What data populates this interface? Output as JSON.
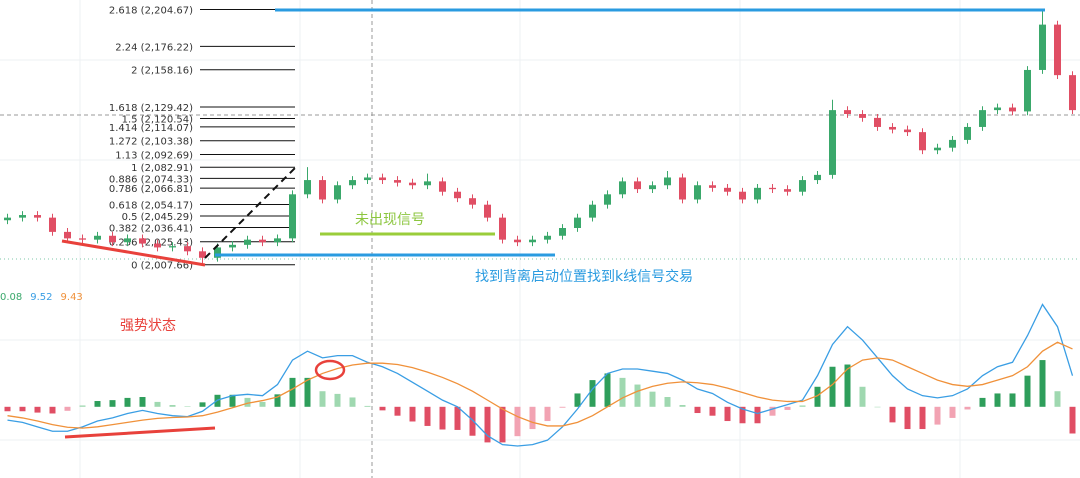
{
  "chart_data": [
    {
      "type": "candlestick",
      "open": [
        2042,
        2044,
        2046,
        2044,
        2033,
        2028,
        2027,
        2030,
        2025,
        2028,
        2024,
        2021,
        2022,
        2018,
        2013,
        2021,
        2023,
        2027,
        2025,
        2028,
        2062,
        2073,
        2058,
        2069,
        2073,
        2075,
        2073,
        2071,
        2069,
        2072,
        2064,
        2059,
        2054,
        2044,
        2027,
        2025,
        2027,
        2030,
        2036,
        2044,
        2054,
        2062,
        2072,
        2066,
        2069,
        2075,
        2058,
        2069,
        2067,
        2064,
        2058,
        2067,
        2066,
        2064,
        2073,
        2077,
        2127,
        2124,
        2121,
        2114,
        2112,
        2110,
        2096,
        2098,
        2104,
        2114,
        2127,
        2129,
        2126,
        2158,
        2193,
        2154
      ],
      "high": [
        2047,
        2049,
        2049,
        2047,
        2036,
        2031,
        2033,
        2033,
        2031,
        2031,
        2027,
        2025,
        2025,
        2021,
        2024,
        2026,
        2030,
        2030,
        2031,
        2065,
        2083,
        2076,
        2072,
        2076,
        2078,
        2078,
        2076,
        2074,
        2078,
        2075,
        2067,
        2062,
        2057,
        2047,
        2030,
        2030,
        2033,
        2039,
        2047,
        2057,
        2065,
        2075,
        2075,
        2072,
        2080,
        2078,
        2072,
        2072,
        2070,
        2067,
        2070,
        2070,
        2069,
        2076,
        2080,
        2135,
        2130,
        2127,
        2124,
        2117,
        2115,
        2113,
        2101,
        2107,
        2117,
        2130,
        2132,
        2132,
        2161,
        2204,
        2196,
        2157
      ],
      "low": [
        2039,
        2041,
        2041,
        2030,
        2025,
        2024,
        2024,
        2022,
        2022,
        2021,
        2018,
        2018,
        2015,
        2008,
        2010,
        2018,
        2020,
        2022,
        2022,
        2025,
        2059,
        2055,
        2055,
        2066,
        2070,
        2070,
        2068,
        2066,
        2066,
        2061,
        2056,
        2051,
        2041,
        2024,
        2022,
        2022,
        2024,
        2027,
        2033,
        2041,
        2051,
        2059,
        2063,
        2063,
        2066,
        2055,
        2055,
        2064,
        2061,
        2055,
        2055,
        2063,
        2061,
        2061,
        2070,
        2074,
        2121,
        2118,
        2111,
        2109,
        2107,
        2093,
        2093,
        2095,
        2101,
        2111,
        2124,
        2123,
        2123,
        2155,
        2151,
        2124
      ],
      "close": [
        2044,
        2046,
        2044,
        2033,
        2028,
        2027,
        2030,
        2025,
        2028,
        2024,
        2021,
        2022,
        2018,
        2013,
        2021,
        2023,
        2027,
        2025,
        2028,
        2062,
        2073,
        2058,
        2069,
        2073,
        2075,
        2073,
        2071,
        2069,
        2072,
        2064,
        2059,
        2054,
        2044,
        2027,
        2025,
        2027,
        2030,
        2036,
        2044,
        2054,
        2062,
        2072,
        2066,
        2069,
        2075,
        2058,
        2069,
        2067,
        2064,
        2058,
        2067,
        2066,
        2064,
        2073,
        2077,
        2127,
        2124,
        2121,
        2114,
        2112,
        2110,
        2096,
        2098,
        2104,
        2114,
        2127,
        2129,
        2126,
        2158,
        2193,
        2154,
        2127
      ],
      "up_color": "#3aa86b",
      "down_color": "#e04e64",
      "ylim": [
        1992,
        2212
      ],
      "yticks": [
        {
          "value": 2204.67,
          "label": "2.618 (2,204.67)"
        },
        {
          "value": 2176.22,
          "label": "2.24 (2,176.22)"
        },
        {
          "value": 2158.16,
          "label": "2 (2,158.16)"
        },
        {
          "value": 2129.42,
          "label": "1.618 (2,129.42)"
        },
        {
          "value": 2120.54,
          "label": "1.5 (2,120.54)"
        },
        {
          "value": 2114.07,
          "label": "1.414 (2,114.07)"
        },
        {
          "value": 2103.38,
          "label": "1.272 (2,103.38)"
        },
        {
          "value": 2092.69,
          "label": "1.13 (2,092.69)"
        },
        {
          "value": 2082.91,
          "label": "1 (2,082.91)"
        },
        {
          "value": 2074.33,
          "label": "0.886 (2,074.33)"
        },
        {
          "value": 2066.81,
          "label": "0.786 (2,066.81)"
        },
        {
          "value": 2054.17,
          "label": "0.618 (2,054.17)"
        },
        {
          "value": 2045.29,
          "label": "0.5 (2,045.29)"
        },
        {
          "value": 2036.41,
          "label": "0.382 (2,036.41)"
        },
        {
          "value": 2025.43,
          "label": "0.236 (2,025.43)"
        },
        {
          "value": 2007.66,
          "label": "0 (2,007.66)"
        }
      ],
      "annotations": [
        "未出现信号",
        "找到背离启动位置找到k线信号交易"
      ]
    },
    {
      "type": "macd",
      "ylim": [
        -16,
        24
      ],
      "series": [
        {
          "color": "#3aa86b",
          "readout": 0.08,
          "values": [
            -1,
            -1,
            -1.3,
            -1.5,
            -0.9,
            0.3,
            1.3,
            1.5,
            2,
            2.2,
            1.1,
            0.4,
            0.1,
            1,
            2.7,
            2.7,
            2,
            1.1,
            2.8,
            6.5,
            6.5,
            3.5,
            2.9,
            2.1,
            0.2,
            -0.8,
            -2,
            -3.3,
            -4.3,
            -5.1,
            -5.2,
            -6.5,
            -8,
            -8,
            -6.6,
            -5,
            -3.2,
            -0.2,
            3,
            6,
            7.5,
            6.5,
            5,
            3.4,
            2.2,
            0.4,
            -1.4,
            -2,
            -3.2,
            -3.7,
            -3.7,
            -2,
            -0.7,
            0.3,
            4.5,
            9,
            9.5,
            4.5,
            0,
            -3.5,
            -5,
            -5,
            -4,
            -2.5,
            -0.6,
            2,
            3,
            3,
            7,
            10.5,
            3.5,
            -6
          ]
        },
        {
          "color": "#3a9ee4",
          "readout": 9.52,
          "values": [
            -3,
            -3.5,
            -4.5,
            -5.5,
            -5.5,
            -4.5,
            -3.2,
            -2.5,
            -1.5,
            -0.8,
            -1.5,
            -2,
            -2.2,
            -1,
            1.5,
            2.5,
            2.8,
            2.5,
            5,
            10.5,
            12.5,
            11,
            11.5,
            11.5,
            10,
            9,
            7.5,
            5.5,
            3.5,
            1.5,
            0,
            -3,
            -6.5,
            -8.5,
            -8.8,
            -8.5,
            -7.5,
            -4.5,
            -0.5,
            4,
            7.5,
            8.5,
            8.5,
            8,
            7.5,
            6,
            4,
            3,
            1,
            -0.5,
            -1.5,
            -0.5,
            0.5,
            1.5,
            7,
            14,
            18,
            15,
            11,
            7,
            4,
            2.5,
            2,
            2.5,
            4,
            7,
            9,
            10,
            16,
            23,
            18,
            7
          ]
        },
        {
          "color": "#f0913a",
          "readout": 9.43,
          "values": [
            -2,
            -2.5,
            -3.2,
            -4,
            -4.6,
            -4.8,
            -4.5,
            -4,
            -3.5,
            -3,
            -2.6,
            -2.4,
            -2.3,
            -2,
            -1.2,
            -0.2,
            0.8,
            1.4,
            2.2,
            4,
            6,
            7.5,
            8.6,
            9.4,
            9.8,
            9.8,
            9.5,
            8.8,
            7.8,
            6.6,
            5.2,
            3.5,
            1.5,
            -0.5,
            -2.2,
            -3.5,
            -4.3,
            -4.3,
            -3.5,
            -2,
            0,
            2,
            3.5,
            4.6,
            5.3,
            5.6,
            5.4,
            5,
            4.2,
            3.2,
            2.2,
            1.5,
            1.2,
            1.2,
            2.5,
            5,
            8.5,
            10.5,
            11,
            10.5,
            9,
            7.5,
            6,
            5,
            4.6,
            5,
            6,
            7,
            9,
            12.5,
            14.5,
            13
          ]
        }
      ],
      "annotations": [
        "强势状态"
      ]
    }
  ]
}
